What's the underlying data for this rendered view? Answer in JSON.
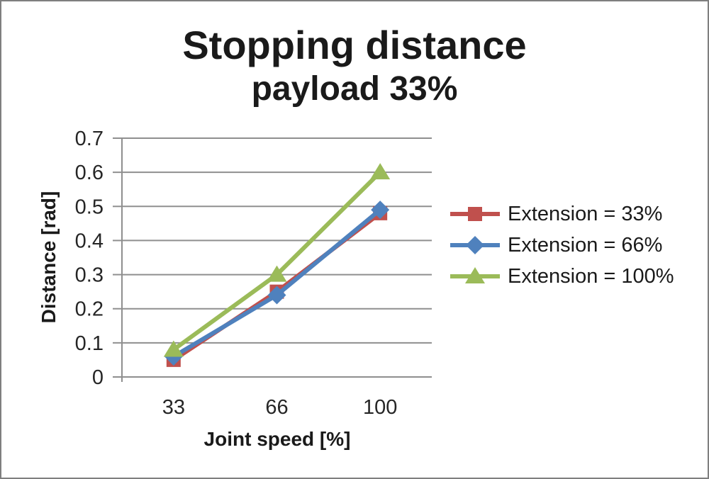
{
  "chart_data": {
    "type": "line",
    "title": "Stopping distance",
    "subtitle": "payload 33%",
    "xlabel": "Joint speed [%]",
    "ylabel": "Distance [rad]",
    "categories": [
      33,
      66,
      100
    ],
    "x_tick_labels": [
      "33",
      "66",
      "100"
    ],
    "ylim": [
      0,
      0.7
    ],
    "ytick_step": 0.1,
    "ytick_labels": [
      "0",
      "0.1",
      "0.2",
      "0.3",
      "0.4",
      "0.5",
      "0.6",
      "0.7"
    ],
    "grid": true,
    "legend_position": "right",
    "series": [
      {
        "name": "Extension = 33%",
        "marker": "square",
        "color": "#C0504D",
        "values": [
          0.05,
          0.25,
          0.48
        ]
      },
      {
        "name": "Extension = 66%",
        "marker": "diamond",
        "color": "#4F81BD",
        "values": [
          0.06,
          0.24,
          0.49
        ]
      },
      {
        "name": "Extension = 100%",
        "marker": "triangle",
        "color": "#9BBB59",
        "values": [
          0.08,
          0.3,
          0.6
        ]
      }
    ],
    "colors": {
      "gridline": "#8f8f8f",
      "tick_text": "#262626",
      "title_text": "#1a1a1a",
      "frame_border": "#7f7f7f"
    }
  }
}
